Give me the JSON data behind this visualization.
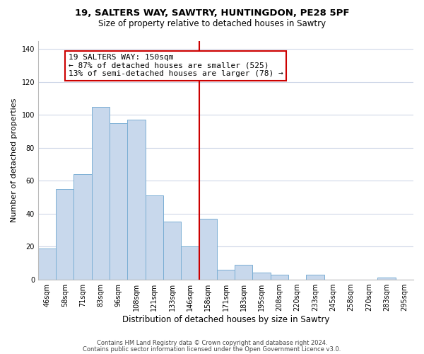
{
  "title": "19, SALTERS WAY, SAWTRY, HUNTINGDON, PE28 5PF",
  "subtitle": "Size of property relative to detached houses in Sawtry",
  "xlabel": "Distribution of detached houses by size in Sawtry",
  "ylabel": "Number of detached properties",
  "categories": [
    "46sqm",
    "58sqm",
    "71sqm",
    "83sqm",
    "96sqm",
    "108sqm",
    "121sqm",
    "133sqm",
    "146sqm",
    "158sqm",
    "171sqm",
    "183sqm",
    "195sqm",
    "208sqm",
    "220sqm",
    "233sqm",
    "245sqm",
    "258sqm",
    "270sqm",
    "283sqm",
    "295sqm"
  ],
  "values": [
    19,
    55,
    64,
    105,
    95,
    97,
    51,
    35,
    20,
    37,
    6,
    9,
    4,
    3,
    0,
    3,
    0,
    0,
    0,
    1,
    0
  ],
  "bar_color": "#c8d8ec",
  "bar_edge_color": "#7bafd4",
  "vline_x_index": 8.5,
  "vline_color": "#cc0000",
  "annotation_line1": "19 SALTERS WAY: 150sqm",
  "annotation_line2": "← 87% of detached houses are smaller (525)",
  "annotation_line3": "13% of semi-detached houses are larger (78) →",
  "annotation_box_facecolor": "#ffffff",
  "annotation_box_edgecolor": "#cc0000",
  "ylim": [
    0,
    145
  ],
  "yticks": [
    0,
    20,
    40,
    60,
    80,
    100,
    120,
    140
  ],
  "footer_line1": "Contains HM Land Registry data © Crown copyright and database right 2024.",
  "footer_line2": "Contains public sector information licensed under the Open Government Licence v3.0.",
  "background_color": "#ffffff",
  "grid_color": "#d0d8e8",
  "title_fontsize": 9.5,
  "subtitle_fontsize": 8.5,
  "xlabel_fontsize": 8.5,
  "ylabel_fontsize": 8,
  "tick_fontsize": 7,
  "footer_fontsize": 6,
  "annotation_fontsize": 8
}
